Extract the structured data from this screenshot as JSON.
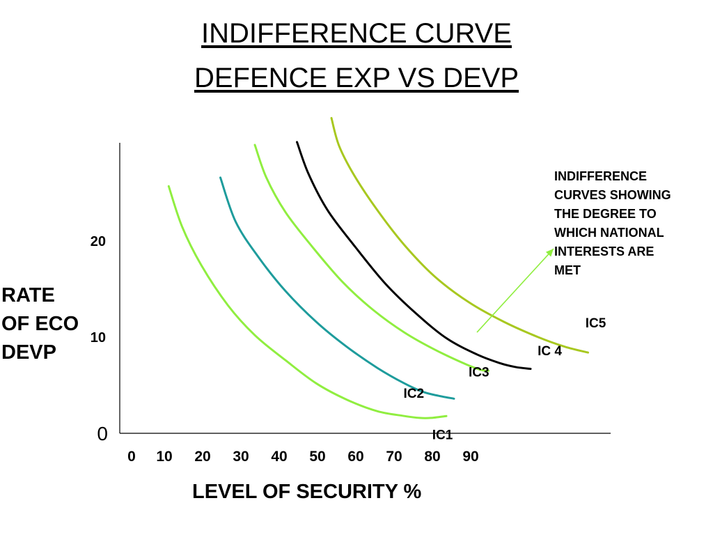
{
  "chart_data": {
    "type": "line",
    "title": "INDIFFERENCE CURVE",
    "subtitle": "DEFENCE EXP VS DEVP",
    "xlabel": "LEVEL OF SECURITY %",
    "ylabel": [
      "RATE",
      "OF ECO",
      "DEVP"
    ],
    "x_ticks": [
      "0",
      "10",
      "20",
      "30",
      "40",
      "50",
      "60",
      "70",
      "80",
      "90"
    ],
    "y_ticks": [
      {
        "label": "0",
        "value": 0
      },
      {
        "label": "10",
        "value": 10
      },
      {
        "label": "20",
        "value": 20
      }
    ],
    "xlim": [
      0,
      127
    ],
    "ylim": [
      0,
      30
    ],
    "grid": false,
    "annotation": {
      "lines": [
        "INDIFFERENCE",
        "CURVES SHOWING",
        "THE DEGREE TO",
        "WHICH NATIONAL",
        "INTERESTS ARE",
        "MET"
      ],
      "color": "#90EE40",
      "arrow_from": [
        90,
        10.5
      ],
      "arrow_to": [
        110,
        19.2
      ]
    },
    "series": [
      {
        "name": "IC1",
        "color": "#90EE40",
        "x": [
          9.5,
          13,
          18,
          25,
          32,
          40,
          48,
          56,
          64,
          71,
          75,
          78,
          82
        ],
        "y": [
          25.7,
          21.5,
          17.5,
          13.3,
          10.2,
          7.6,
          5.2,
          3.5,
          2.3,
          1.8,
          1.6,
          1.6,
          1.8
        ]
      },
      {
        "name": "IC2",
        "color": "#1E9C9C",
        "x": [
          23,
          27,
          33,
          40,
          48,
          56,
          64,
          71,
          76,
          80,
          84
        ],
        "y": [
          26.6,
          22,
          18.3,
          14.8,
          11.6,
          9,
          6.8,
          5.2,
          4.3,
          3.9,
          3.6
        ]
      },
      {
        "name": "IC3",
        "color": "#90EE40",
        "x": [
          32,
          35,
          40,
          47,
          55,
          63,
          71,
          79,
          87,
          91,
          93
        ],
        "y": [
          30,
          26.6,
          23,
          19.4,
          15.7,
          12.8,
          10.5,
          8.7,
          7.2,
          6.6,
          6.5
        ]
      },
      {
        "name": "IC 4",
        "color": "#000000",
        "x": [
          43,
          46,
          51,
          58,
          66,
          74,
          82,
          90,
          96,
          100,
          104
        ],
        "y": [
          30.3,
          27,
          23.2,
          19.5,
          15.6,
          12.5,
          9.9,
          8.2,
          7.3,
          6.9,
          6.7
        ]
      },
      {
        "name": "IC5",
        "color": "#A8C820",
        "x": [
          52,
          54,
          58,
          64,
          71,
          79,
          88,
          97,
          106,
          113,
          119
        ],
        "y": [
          32.8,
          29.9,
          26.8,
          23.2,
          19.6,
          16.3,
          13.6,
          11.6,
          10,
          9,
          8.4
        ]
      }
    ],
    "series_labels": [
      {
        "series": 0,
        "x": 81,
        "y": -0.6
      },
      {
        "series": 1,
        "x": 73.5,
        "y": 3.7
      },
      {
        "series": 2,
        "x": 90.5,
        "y": 5.9
      },
      {
        "series": 3,
        "x": 109,
        "y": 8.1
      },
      {
        "series": 4,
        "x": 121,
        "y": 11
      }
    ]
  }
}
